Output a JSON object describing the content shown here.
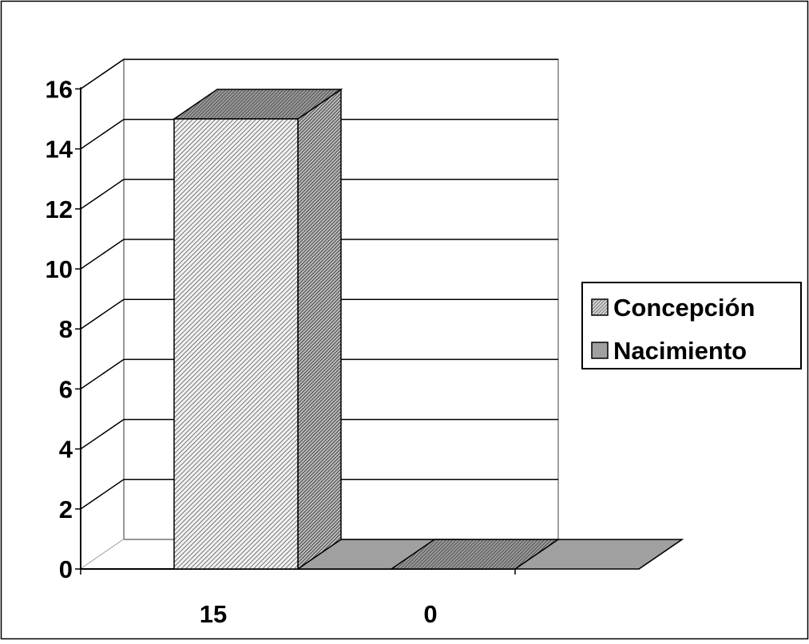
{
  "chart_data": {
    "type": "bar",
    "three_d": true,
    "title": "",
    "xlabel": "",
    "ylabel": "",
    "ylim": [
      0,
      16
    ],
    "y_ticks": [
      0,
      2,
      4,
      6,
      8,
      10,
      12,
      14,
      16
    ],
    "grid": true,
    "legend_position": "right",
    "categories": [
      "15",
      "0"
    ],
    "series": [
      {
        "name": "Concepción",
        "values": [
          15,
          0
        ],
        "color": "#c8c8c8",
        "pattern": "diagonal-hatch"
      },
      {
        "name": "Nacimiento",
        "values": [
          0,
          0
        ],
        "color": "#a0a0a0",
        "pattern": "solid"
      }
    ]
  }
}
